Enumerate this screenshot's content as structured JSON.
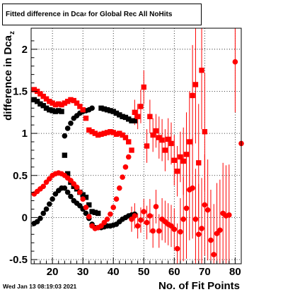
{
  "title": {
    "text": "Fitted difference in Dca",
    "subscript": "z",
    "suffix": " for Global Rec All NoHits"
  },
  "timestamp": "Wed Jan 13 08:19:03 2021",
  "chart_data": {
    "type": "scatter",
    "xlabel": "No. of Fit Points",
    "ylabel": "difference in Dca",
    "ylabel_subscript": "z",
    "xlim": [
      13,
      82
    ],
    "ylim": [
      -0.55,
      2.25
    ],
    "xticks": [
      20,
      30,
      40,
      50,
      60,
      70,
      80
    ],
    "yticks": [
      -0.5,
      0,
      0.5,
      1,
      1.5,
      2
    ],
    "yticklabels": [
      "-0.5",
      "0",
      "0.5",
      "1",
      "1.5",
      "2"
    ],
    "grid": true,
    "colors": {
      "black": "#000000",
      "red": "#ff0000"
    },
    "series": [
      {
        "marker": "circle",
        "color": "#000000",
        "x": [
          14,
          15,
          16,
          17,
          18,
          19,
          20,
          21,
          22,
          23,
          24,
          25,
          26,
          27,
          28,
          29,
          30,
          31,
          32,
          33,
          34,
          35,
          36,
          37,
          38,
          39,
          40,
          41,
          42,
          43,
          44,
          45,
          46,
          47
        ],
        "y": [
          -0.07,
          -0.05,
          -0.01,
          0.05,
          0.1,
          0.16,
          0.22,
          0.28,
          0.32,
          0.35,
          0.35,
          0.3,
          0.25,
          0.2,
          0.17,
          0.14,
          0.1,
          0.05,
          -0.01,
          -0.08,
          -0.12,
          -0.12,
          -0.12,
          -0.11,
          -0.1,
          -0.1,
          -0.09,
          -0.08,
          -0.05,
          -0.02,
          0,
          0.02,
          0.03,
          0.04
        ],
        "yerr": [
          0.01,
          0.01,
          0.01,
          0.01,
          0.01,
          0.01,
          0.01,
          0.01,
          0.01,
          0.01,
          0.01,
          0.01,
          0.01,
          0.01,
          0.01,
          0.01,
          0.01,
          0.01,
          0.01,
          0.01,
          0.01,
          0.01,
          0.01,
          0.01,
          0.01,
          0.01,
          0.01,
          0.01,
          0.01,
          0.01,
          0.01,
          0.01,
          0.02,
          0.02
        ]
      },
      {
        "marker": "square",
        "color": "#000000",
        "x": [
          14,
          15,
          16,
          17,
          18,
          19,
          20,
          21,
          22,
          23,
          24,
          25,
          26,
          27,
          28,
          29,
          30,
          31,
          32,
          33,
          34,
          35,
          36,
          37,
          38,
          39,
          40,
          41,
          42,
          43,
          44,
          45,
          46,
          47
        ],
        "y": [
          1.4,
          1.38,
          1.35,
          1.33,
          1.3,
          1.28,
          1.27,
          1.26,
          1.27,
          1.26,
          0.74,
          0.52,
          0.42,
          0.37,
          0.34,
          0.3,
          0.27,
          0.24,
          0.15,
          0.07,
          0.06,
          0.05,
          1.3,
          1.29,
          1.28,
          1.27,
          1.26,
          1.24,
          1.22,
          1.2,
          1.19,
          1.17,
          1.15,
          1.15
        ],
        "yerr": [
          0.01,
          0.01,
          0.01,
          0.01,
          0.01,
          0.01,
          0.01,
          0.01,
          0.01,
          0.01,
          0.01,
          0.01,
          0.01,
          0.01,
          0.01,
          0.01,
          0.01,
          0.01,
          0.01,
          0.01,
          0.01,
          0.01,
          0.01,
          0.01,
          0.01,
          0.01,
          0.01,
          0.01,
          0.01,
          0.02,
          0.02,
          0.02,
          0.03,
          0.03
        ]
      },
      {
        "marker": "circle",
        "color": "#000000",
        "x": [
          24,
          25,
          26,
          27,
          28,
          29,
          30,
          31,
          32,
          33
        ],
        "y": [
          0.97,
          1.06,
          1.12,
          1.18,
          1.21,
          1.24,
          1.26,
          1.27,
          1.28,
          1.3
        ],
        "yerr": [
          0.01,
          0.01,
          0.01,
          0.01,
          0.01,
          0.01,
          0.01,
          0.01,
          0.01,
          0.01
        ]
      },
      {
        "marker": "circle",
        "color": "#ff0000",
        "x": [
          14,
          15,
          16,
          17,
          18,
          19,
          20,
          21,
          22,
          23,
          24,
          25,
          26,
          27,
          28,
          29,
          30,
          31,
          32,
          33,
          34,
          35,
          36,
          37,
          38,
          39,
          40,
          41,
          42,
          43,
          44,
          45,
          46,
          47,
          48,
          49,
          50,
          51,
          52,
          53,
          54,
          55,
          56,
          57,
          58,
          59,
          60,
          61,
          62,
          63,
          64,
          65,
          66,
          67,
          68,
          69,
          70,
          71,
          72,
          73,
          74,
          75,
          76,
          77,
          78,
          80,
          82
        ],
        "y": [
          0.28,
          0.31,
          0.34,
          0.37,
          0.42,
          0.46,
          0.5,
          0.52,
          0.53,
          0.52,
          0.5,
          0.47,
          0.44,
          0.4,
          0.36,
          0.3,
          0.22,
          0.12,
          0.01,
          -0.1,
          -0.13,
          -0.12,
          -0.1,
          -0.06,
          -0.02,
          0.04,
          0.12,
          0.22,
          0.35,
          0.48,
          0.6,
          0.72,
          -0.02,
          0.02,
          -0.1,
          -0.03,
          0.07,
          -0.06,
          0.02,
          -0.16,
          0.13,
          -0.16,
          -0.02,
          -0.05,
          -0.08,
          -0.1,
          -0.14,
          -0.37,
          -0.17,
          -0.02,
          0.11,
          0.33,
          0.35,
          -0.02,
          -0.2,
          -0.13,
          0.15,
          0.09,
          -0.27,
          -0.44,
          -0.19,
          -0.15,
          0.05,
          0.02,
          0.03,
          1.85,
          0.88
        ],
        "yerr": [
          0.01,
          0.01,
          0.01,
          0.01,
          0.01,
          0.01,
          0.01,
          0.01,
          0.01,
          0.01,
          0.01,
          0.01,
          0.01,
          0.01,
          0.01,
          0.01,
          0.01,
          0.01,
          0.01,
          0.01,
          0.01,
          0.01,
          0.01,
          0.01,
          0.01,
          0.01,
          0.01,
          0.01,
          0.01,
          0.01,
          0.01,
          0.01,
          0.15,
          0.15,
          0.15,
          0.15,
          0.15,
          0.2,
          0.2,
          0.2,
          0.2,
          0.2,
          0.25,
          0.25,
          0.25,
          0.25,
          0.25,
          0.3,
          0.4,
          0.5,
          0.6,
          0.6,
          0.6,
          0.6,
          0.6,
          0.6,
          0.6,
          0.6,
          0.6,
          0.6,
          0.6,
          0.6,
          0.6,
          0.6,
          0.6,
          0.6,
          0.6
        ]
      },
      {
        "marker": "square",
        "color": "#ff0000",
        "x": [
          14,
          15,
          16,
          17,
          18,
          19,
          20,
          21,
          22,
          23,
          24,
          25,
          26,
          27,
          28,
          29,
          30,
          31,
          32,
          33,
          34,
          35,
          36,
          37,
          38,
          39,
          40,
          41,
          42,
          43,
          44,
          45,
          46,
          47,
          48,
          49,
          50,
          51,
          52,
          53,
          54,
          55,
          56,
          57,
          58,
          59,
          60,
          61,
          62,
          63,
          64,
          65,
          66,
          67,
          68,
          69,
          70
        ],
        "y": [
          1.52,
          1.5,
          1.47,
          1.44,
          1.41,
          1.38,
          1.36,
          1.34,
          1.35,
          1.34,
          1.36,
          1.38,
          1.4,
          1.39,
          1.36,
          1.32,
          1.28,
          1.18,
          1.04,
          1.02,
          1.0,
          0.98,
          0.99,
          1.0,
          1.01,
          1.02,
          1.01,
          0.99,
          1.0,
          0.98,
          0.95,
          0.9,
          0.8,
          1.25,
          1.2,
          1.32,
          1.55,
          0.85,
          1.2,
          0.98,
          1.03,
          0.95,
          0.92,
          0.8,
          0.93,
          0.88,
          0.68,
          0.55,
          0.72,
          0.67,
          0.75,
          0.9,
          1.45,
          1.58,
          0.65,
          1.75,
          1.02
        ],
        "yerr": [
          0.01,
          0.01,
          0.01,
          0.01,
          0.01,
          0.01,
          0.01,
          0.01,
          0.01,
          0.01,
          0.01,
          0.01,
          0.01,
          0.01,
          0.01,
          0.01,
          0.01,
          0.01,
          0.01,
          0.01,
          0.01,
          0.01,
          0.01,
          0.01,
          0.01,
          0.01,
          0.01,
          0.01,
          0.01,
          0.02,
          0.02,
          0.02,
          0.03,
          0.15,
          0.15,
          0.2,
          0.2,
          0.2,
          0.2,
          0.2,
          0.2,
          0.25,
          0.25,
          0.25,
          0.25,
          0.25,
          0.3,
          0.3,
          0.3,
          0.4,
          0.5,
          0.6,
          0.6,
          0.7,
          0.7,
          0.7,
          0.7
        ]
      }
    ]
  }
}
